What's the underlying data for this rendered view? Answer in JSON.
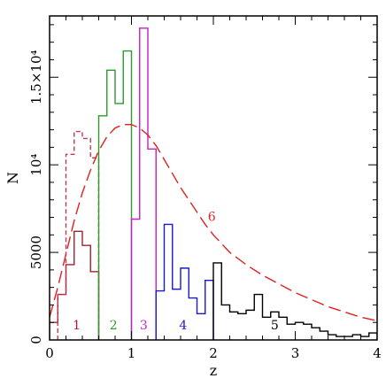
{
  "chart_data": {
    "type": "line",
    "xlabel": "z",
    "ylabel": "N",
    "xlim": [
      0,
      4
    ],
    "ylim": [
      0,
      18500
    ],
    "x_ticks": [
      {
        "value": 0,
        "label": "0"
      },
      {
        "value": 1,
        "label": "1"
      },
      {
        "value": 2,
        "label": "2"
      },
      {
        "value": 3,
        "label": "3"
      },
      {
        "value": 4,
        "label": "4"
      }
    ],
    "y_ticks": [
      {
        "value": 0,
        "label": "0"
      },
      {
        "value": 5000,
        "label": "5000"
      },
      {
        "value": 10000,
        "label": "10⁴"
      },
      {
        "value": 15000,
        "label": "1.5×10⁴"
      }
    ],
    "series": [
      {
        "label": "1",
        "color": "#a0222a",
        "style": "step",
        "edges": [
          0.0,
          0.1,
          0.2,
          0.3,
          0.4,
          0.5,
          0.6
        ],
        "values": [
          1000,
          2600,
          4300,
          6200,
          5400,
          3900
        ]
      },
      {
        "label": "1",
        "color": "#c23a5a",
        "style": "step-dashed",
        "edges": [
          0.1,
          0.2,
          0.3,
          0.4,
          0.5,
          0.6
        ],
        "values": [
          2600,
          10600,
          11900,
          11500,
          10400
        ]
      },
      {
        "label": "2",
        "color": "#2e9a2e",
        "style": "step",
        "edges": [
          0.6,
          0.7,
          0.8,
          0.9,
          1.0
        ],
        "values": [
          12800,
          15400,
          13500,
          16500
        ]
      },
      {
        "label": "3",
        "color": "#c41ec4",
        "style": "step",
        "edges": [
          1.0,
          1.1,
          1.2,
          1.3
        ],
        "values": [
          6900,
          17800,
          10900
        ]
      },
      {
        "label": "4",
        "color": "#1a1ac8",
        "style": "step",
        "edges": [
          1.3,
          1.4,
          1.5,
          1.6,
          1.7,
          1.8,
          1.9,
          2.0
        ],
        "values": [
          2800,
          6600,
          2900,
          4100,
          2400,
          1500,
          3400
        ]
      },
      {
        "label": "5",
        "color": "#000000",
        "style": "step",
        "edges": [
          2.0,
          2.1,
          2.2,
          2.3,
          2.4,
          2.5,
          2.6,
          2.7,
          2.8,
          2.9,
          3.0,
          3.1,
          3.2,
          3.3,
          3.4,
          3.5,
          3.6,
          3.7,
          3.8,
          3.9,
          4.0
        ],
        "values": [
          4400,
          2000,
          1600,
          1500,
          1700,
          2600,
          1300,
          1600,
          1300,
          900,
          1000,
          900,
          700,
          500,
          300,
          200,
          200,
          300,
          200,
          400
        ]
      },
      {
        "label": "6",
        "color": "#e0201e",
        "style": "dashed-curve",
        "x": [
          0.0,
          0.1,
          0.2,
          0.3,
          0.4,
          0.5,
          0.6,
          0.7,
          0.8,
          0.9,
          1.0,
          1.1,
          1.2,
          1.3,
          1.4,
          1.5,
          1.6,
          1.7,
          1.8,
          1.9,
          2.0,
          2.2,
          2.4,
          2.6,
          2.8,
          3.0,
          3.2,
          3.4,
          3.6,
          3.8,
          4.0
        ],
        "y": [
          1300,
          3000,
          4900,
          6800,
          8400,
          9700,
          10800,
          11600,
          12100,
          12300,
          12300,
          12100,
          11700,
          11100,
          10300,
          9500,
          8700,
          8000,
          7300,
          6600,
          6000,
          5000,
          4300,
          3700,
          3200,
          2700,
          2300,
          1900,
          1600,
          1300,
          1100
        ]
      }
    ],
    "annotations": [
      {
        "text": "1",
        "x": 0.33,
        "y": 600,
        "color": "#a0222a"
      },
      {
        "text": "2",
        "x": 0.78,
        "y": 600,
        "color": "#2e9a2e"
      },
      {
        "text": "3",
        "x": 1.15,
        "y": 600,
        "color": "#c41ec4"
      },
      {
        "text": "4",
        "x": 1.63,
        "y": 600,
        "color": "#1a1ac8"
      },
      {
        "text": "5",
        "x": 2.75,
        "y": 600,
        "color": "#000000"
      },
      {
        "text": "6",
        "x": 1.98,
        "y": 6800,
        "color": "#e0201e"
      }
    ]
  }
}
